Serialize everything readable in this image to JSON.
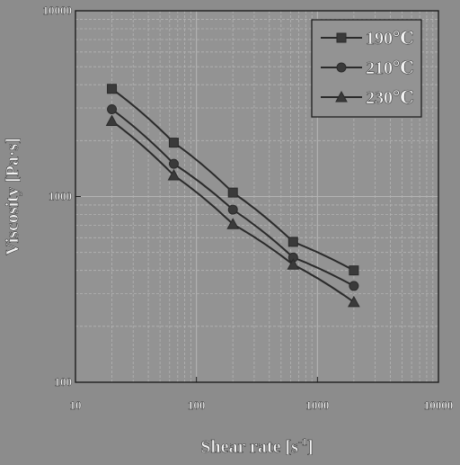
{
  "chart_data": {
    "type": "line",
    "title": "",
    "xlabel": "Shear rate [s",
    "xlabel_sup": "-1",
    "xlabel_close": "]",
    "ylabel": "Viscosity [Pa·s]",
    "xscale": "log",
    "yscale": "log",
    "xlim": [
      10,
      10000
    ],
    "ylim": [
      100,
      10000
    ],
    "x_ticks": [
      "10",
      "100",
      "1000",
      "10000"
    ],
    "y_ticks": [
      "100",
      "1000",
      "10000"
    ],
    "grid": true,
    "legend": "top-right",
    "x": [
      20,
      65,
      200,
      630,
      2000
    ],
    "series": [
      {
        "name": "190℃",
        "marker": "square",
        "values": [
          3800,
          1950,
          1050,
          570,
          400
        ]
      },
      {
        "name": "210℃",
        "marker": "circle",
        "values": [
          2950,
          1500,
          850,
          470,
          330
        ]
      },
      {
        "name": "230℃",
        "marker": "triangle",
        "values": [
          2550,
          1300,
          710,
          430,
          270
        ]
      }
    ]
  },
  "colors": {
    "background": "#8c8c8c",
    "plot_background": "#939393",
    "grid": "#b4b4b4",
    "axis": "#1e1e1e",
    "text": "#f2f2f2",
    "series": "#2a2a2a",
    "marker_fill": "#3a3a3a"
  }
}
